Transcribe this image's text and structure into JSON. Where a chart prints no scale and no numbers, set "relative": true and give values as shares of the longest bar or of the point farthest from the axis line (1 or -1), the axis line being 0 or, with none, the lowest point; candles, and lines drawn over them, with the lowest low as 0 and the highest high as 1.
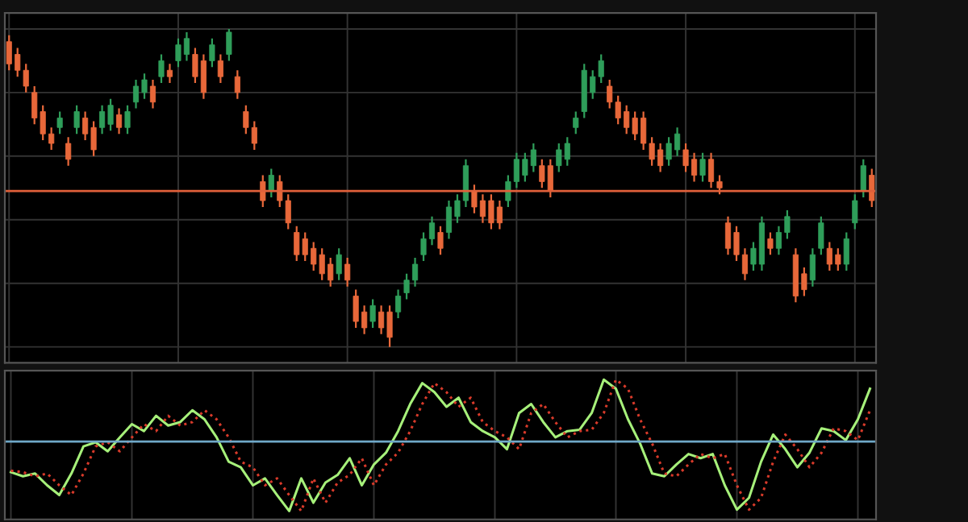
{
  "chart_data": [
    {
      "type": "candlestick",
      "relative": true,
      "tick_labels": false,
      "grid": true,
      "categories": [
        null,
        null,
        null,
        null,
        null,
        null,
        null,
        null,
        null,
        null,
        null,
        null,
        null,
        null,
        null,
        null,
        null,
        null,
        null,
        null,
        null,
        null,
        null,
        null,
        null,
        null,
        null,
        null,
        null,
        null,
        null,
        null,
        null,
        null,
        null,
        null,
        null,
        null,
        null,
        null,
        null,
        null,
        null,
        null,
        null,
        null,
        null,
        null,
        null,
        null,
        null,
        null,
        null,
        null,
        null,
        null,
        null,
        null,
        null,
        null,
        null,
        null,
        null,
        null,
        null,
        null,
        null,
        null,
        null,
        null,
        null,
        null,
        null,
        null,
        null,
        null,
        null,
        null,
        null,
        null,
        null,
        null,
        null,
        null,
        null,
        null,
        null,
        null,
        null,
        null,
        null,
        null,
        null,
        null,
        null,
        null,
        null,
        null,
        null,
        null,
        null,
        null,
        null
      ],
      "ohlc": [
        [
          0.96,
          0.98,
          0.87,
          0.89
        ],
        [
          0.92,
          0.94,
          0.85,
          0.87
        ],
        [
          0.87,
          0.89,
          0.8,
          0.82
        ],
        [
          0.8,
          0.82,
          0.7,
          0.72
        ],
        [
          0.74,
          0.76,
          0.65,
          0.67
        ],
        [
          0.67,
          0.69,
          0.62,
          0.64
        ],
        [
          0.69,
          0.74,
          0.67,
          0.72
        ],
        [
          0.64,
          0.66,
          0.57,
          0.59
        ],
        [
          0.69,
          0.76,
          0.67,
          0.74
        ],
        [
          0.72,
          0.74,
          0.65,
          0.67
        ],
        [
          0.69,
          0.71,
          0.6,
          0.62
        ],
        [
          0.69,
          0.76,
          0.67,
          0.74
        ],
        [
          0.7,
          0.78,
          0.68,
          0.76
        ],
        [
          0.73,
          0.75,
          0.67,
          0.69
        ],
        [
          0.69,
          0.76,
          0.67,
          0.74
        ],
        [
          0.77,
          0.84,
          0.75,
          0.82
        ],
        [
          0.8,
          0.86,
          0.78,
          0.84
        ],
        [
          0.82,
          0.84,
          0.75,
          0.77
        ],
        [
          0.85,
          0.92,
          0.83,
          0.9
        ],
        [
          0.87,
          0.89,
          0.83,
          0.85
        ],
        [
          0.9,
          0.97,
          0.88,
          0.95
        ],
        [
          0.92,
          0.99,
          0.9,
          0.97
        ],
        [
          0.92,
          0.94,
          0.83,
          0.85
        ],
        [
          0.9,
          0.92,
          0.78,
          0.8
        ],
        [
          0.9,
          0.97,
          0.88,
          0.95
        ],
        [
          0.9,
          0.92,
          0.83,
          0.85
        ],
        [
          0.92,
          1,
          0.9,
          0.99
        ],
        [
          0.85,
          0.87,
          0.78,
          0.8
        ],
        [
          0.74,
          0.76,
          0.67,
          0.69
        ],
        [
          0.69,
          0.71,
          0.62,
          0.64
        ],
        [
          0.52,
          0.54,
          0.44,
          0.46
        ],
        [
          0.49,
          0.56,
          0.47,
          0.54
        ],
        [
          0.52,
          0.54,
          0.44,
          0.46
        ],
        [
          0.46,
          0.48,
          0.37,
          0.39
        ],
        [
          0.36,
          0.38,
          0.27,
          0.29
        ],
        [
          0.34,
          0.36,
          0.27,
          0.29
        ],
        [
          0.31,
          0.33,
          0.24,
          0.26
        ],
        [
          0.29,
          0.31,
          0.21,
          0.23
        ],
        [
          0.26,
          0.28,
          0.19,
          0.21
        ],
        [
          0.23,
          0.31,
          0.21,
          0.29
        ],
        [
          0.26,
          0.28,
          0.19,
          0.21
        ],
        [
          0.16,
          0.18,
          0.06,
          0.08
        ],
        [
          0.11,
          0.13,
          0.04,
          0.06
        ],
        [
          0.08,
          0.15,
          0.06,
          0.13
        ],
        [
          0.11,
          0.13,
          0.04,
          0.06
        ],
        [
          0.11,
          0.13,
          0,
          0.03
        ],
        [
          0.11,
          0.18,
          0.09,
          0.16
        ],
        [
          0.17,
          0.23,
          0.15,
          0.21
        ],
        [
          0.21,
          0.28,
          0.19,
          0.26
        ],
        [
          0.29,
          0.36,
          0.27,
          0.34
        ],
        [
          0.34,
          0.41,
          0.32,
          0.39
        ],
        [
          0.36,
          0.38,
          0.29,
          0.31
        ],
        [
          0.36,
          0.46,
          0.34,
          0.44
        ],
        [
          0.41,
          0.48,
          0.39,
          0.46
        ],
        [
          0.46,
          0.59,
          0.44,
          0.57
        ],
        [
          0.49,
          0.51,
          0.42,
          0.44
        ],
        [
          0.46,
          0.48,
          0.39,
          0.41
        ],
        [
          0.46,
          0.48,
          0.37,
          0.39
        ],
        [
          0.44,
          0.46,
          0.37,
          0.39
        ],
        [
          0.46,
          0.54,
          0.44,
          0.52
        ],
        [
          0.52,
          0.61,
          0.5,
          0.59
        ],
        [
          0.54,
          0.61,
          0.52,
          0.59
        ],
        [
          0.57,
          0.64,
          0.55,
          0.62
        ],
        [
          0.57,
          0.59,
          0.5,
          0.52
        ],
        [
          0.57,
          0.59,
          0.47,
          0.49
        ],
        [
          0.57,
          0.64,
          0.55,
          0.62
        ],
        [
          0.59,
          0.66,
          0.57,
          0.64
        ],
        [
          0.69,
          0.74,
          0.67,
          0.72
        ],
        [
          0.74,
          0.89,
          0.72,
          0.87
        ],
        [
          0.8,
          0.87,
          0.78,
          0.85
        ],
        [
          0.85,
          0.92,
          0.83,
          0.9
        ],
        [
          0.82,
          0.84,
          0.75,
          0.77
        ],
        [
          0.77,
          0.79,
          0.7,
          0.72
        ],
        [
          0.74,
          0.76,
          0.67,
          0.69
        ],
        [
          0.72,
          0.74,
          0.65,
          0.67
        ],
        [
          0.72,
          0.74,
          0.62,
          0.64
        ],
        [
          0.64,
          0.66,
          0.57,
          0.59
        ],
        [
          0.62,
          0.64,
          0.55,
          0.57
        ],
        [
          0.59,
          0.66,
          0.57,
          0.64
        ],
        [
          0.62,
          0.69,
          0.6,
          0.67
        ],
        [
          0.62,
          0.64,
          0.55,
          0.57
        ],
        [
          0.59,
          0.61,
          0.52,
          0.54
        ],
        [
          0.54,
          0.61,
          0.52,
          0.59
        ],
        [
          0.59,
          0.61,
          0.5,
          0.52
        ],
        [
          0.52,
          0.54,
          0.48,
          0.5
        ],
        [
          0.39,
          0.41,
          0.29,
          0.31
        ],
        [
          0.36,
          0.38,
          0.27,
          0.29
        ],
        [
          0.29,
          0.31,
          0.21,
          0.23
        ],
        [
          0.26,
          0.33,
          0.24,
          0.31
        ],
        [
          0.26,
          0.41,
          0.24,
          0.39
        ],
        [
          0.34,
          0.36,
          0.29,
          0.31
        ],
        [
          0.31,
          0.38,
          0.29,
          0.36
        ],
        [
          0.36,
          0.43,
          0.34,
          0.41
        ],
        [
          0.29,
          0.31,
          0.14,
          0.16
        ],
        [
          0.23,
          0.25,
          0.16,
          0.18
        ],
        [
          0.21,
          0.31,
          0.19,
          0.29
        ],
        [
          0.31,
          0.41,
          0.29,
          0.39
        ],
        [
          0.31,
          0.33,
          0.24,
          0.26
        ],
        [
          0.29,
          0.31,
          0.24,
          0.26
        ],
        [
          0.26,
          0.36,
          0.24,
          0.34
        ],
        [
          0.39,
          0.48,
          0.37,
          0.46
        ],
        [
          0.49,
          0.59,
          0.47,
          0.57
        ],
        [
          0.54,
          0.56,
          0.44,
          0.46
        ]
      ],
      "colors": [
        "#e8683a",
        "#e8683a",
        "#e8683a",
        "#e8683a",
        "#e8683a",
        "#e8683a",
        "#2f9e5a",
        "#e8683a",
        "#2f9e5a",
        "#e8683a",
        "#e8683a",
        "#2f9e5a",
        "#2f9e5a",
        "#e8683a",
        "#2f9e5a",
        "#2f9e5a",
        "#2f9e5a",
        "#e8683a",
        "#2f9e5a",
        "#e8683a",
        "#2f9e5a",
        "#2f9e5a",
        "#e8683a",
        "#e8683a",
        "#2f9e5a",
        "#e8683a",
        "#2f9e5a",
        "#e8683a",
        "#e8683a",
        "#e8683a",
        "#e8683a",
        "#2f9e5a",
        "#e8683a",
        "#e8683a",
        "#e8683a",
        "#e8683a",
        "#e8683a",
        "#e8683a",
        "#e8683a",
        "#2f9e5a",
        "#e8683a",
        "#e8683a",
        "#e8683a",
        "#2f9e5a",
        "#e8683a",
        "#e8683a",
        "#2f9e5a",
        "#2f9e5a",
        "#2f9e5a",
        "#2f9e5a",
        "#2f9e5a",
        "#e8683a",
        "#2f9e5a",
        "#2f9e5a",
        "#2f9e5a",
        "#e8683a",
        "#e8683a",
        "#e8683a",
        "#e8683a",
        "#2f9e5a",
        "#2f9e5a",
        "#2f9e5a",
        "#2f9e5a",
        "#e8683a",
        "#e8683a",
        "#2f9e5a",
        "#2f9e5a",
        "#2f9e5a",
        "#2f9e5a",
        "#2f9e5a",
        "#2f9e5a",
        "#e8683a",
        "#e8683a",
        "#e8683a",
        "#e8683a",
        "#e8683a",
        "#e8683a",
        "#e8683a",
        "#2f9e5a",
        "#2f9e5a",
        "#e8683a",
        "#e8683a",
        "#2f9e5a",
        "#e8683a",
        "#e8683a",
        "#e8683a",
        "#e8683a",
        "#e8683a",
        "#2f9e5a",
        "#2f9e5a",
        "#e8683a",
        "#2f9e5a",
        "#2f9e5a",
        "#e8683a",
        "#e8683a",
        "#2f9e5a",
        "#2f9e5a",
        "#e8683a",
        "#e8683a",
        "#2f9e5a",
        "#2f9e5a",
        "#2f9e5a",
        "#e8683a"
      ],
      "ref_lines": [
        {
          "axis": "y",
          "value": 0.49,
          "color": "#e0603a"
        }
      ]
    },
    {
      "type": "line",
      "relative": true,
      "tick_labels": false,
      "grid": "x",
      "categories": [
        null,
        null,
        null,
        null,
        null,
        null,
        null,
        null,
        null,
        null,
        null,
        null,
        null,
        null,
        null,
        null,
        null,
        null,
        null,
        null,
        null,
        null,
        null,
        null,
        null,
        null,
        null,
        null,
        null,
        null,
        null,
        null,
        null,
        null,
        null,
        null,
        null,
        null,
        null,
        null,
        null,
        null,
        null,
        null,
        null,
        null,
        null,
        null,
        null,
        null,
        null,
        null,
        null,
        null,
        null,
        null,
        null,
        null,
        null,
        null,
        null,
        null,
        null,
        null,
        null,
        null,
        null,
        null,
        null,
        null,
        null,
        null
      ],
      "series": [
        {
          "color": "#a6f07a",
          "line_style": "solid",
          "values": [
            -0.44,
            -0.5,
            -0.46,
            -0.63,
            -0.77,
            -0.46,
            -0.07,
            -0.01,
            -0.14,
            0.06,
            0.25,
            0.15,
            0.37,
            0.23,
            0.28,
            0.45,
            0.32,
            0.06,
            -0.29,
            -0.37,
            -0.63,
            -0.53,
            -0.77,
            -1.0,
            -0.53,
            -0.88,
            -0.59,
            -0.48,
            -0.24,
            -0.63,
            -0.33,
            -0.16,
            0.15,
            0.54,
            0.84,
            0.71,
            0.5,
            0.63,
            0.28,
            0.15,
            0.06,
            -0.11,
            0.41,
            0.54,
            0.28,
            0.06,
            0.15,
            0.17,
            0.41,
            0.89,
            0.76,
            0.32,
            -0.03,
            -0.46,
            -0.5,
            -0.33,
            -0.18,
            -0.24,
            -0.18,
            -0.63,
            -0.98,
            -0.81,
            -0.29,
            0.1,
            -0.11,
            -0.37,
            -0.16,
            0.19,
            0.15,
            0.02,
            0.32,
            0.76
          ]
        },
        {
          "color": "#d83a2a",
          "line_style": "dotted",
          "values": [
            -0.42,
            -0.44,
            -0.5,
            -0.46,
            -0.63,
            -0.77,
            -0.46,
            -0.07,
            -0.01,
            -0.14,
            0.06,
            0.25,
            0.15,
            0.37,
            0.23,
            0.28,
            0.45,
            0.32,
            0.06,
            -0.29,
            -0.37,
            -0.63,
            -0.53,
            -0.77,
            -1.0,
            -0.53,
            -0.88,
            -0.59,
            -0.48,
            -0.24,
            -0.63,
            -0.33,
            -0.16,
            0.15,
            0.54,
            0.84,
            0.71,
            0.5,
            0.63,
            0.28,
            0.15,
            0.06,
            -0.11,
            0.41,
            0.54,
            0.28,
            0.06,
            0.15,
            0.17,
            0.41,
            0.89,
            0.76,
            0.32,
            -0.03,
            -0.46,
            -0.5,
            -0.33,
            -0.18,
            -0.24,
            -0.18,
            -0.63,
            -0.98,
            -0.81,
            -0.29,
            0.1,
            -0.11,
            -0.37,
            -0.16,
            0.19,
            0.15,
            0.02,
            0.45
          ]
        }
      ],
      "ref_lines": [
        {
          "axis": "y",
          "value": 0,
          "color": "#6fa8c8"
        }
      ]
    }
  ]
}
